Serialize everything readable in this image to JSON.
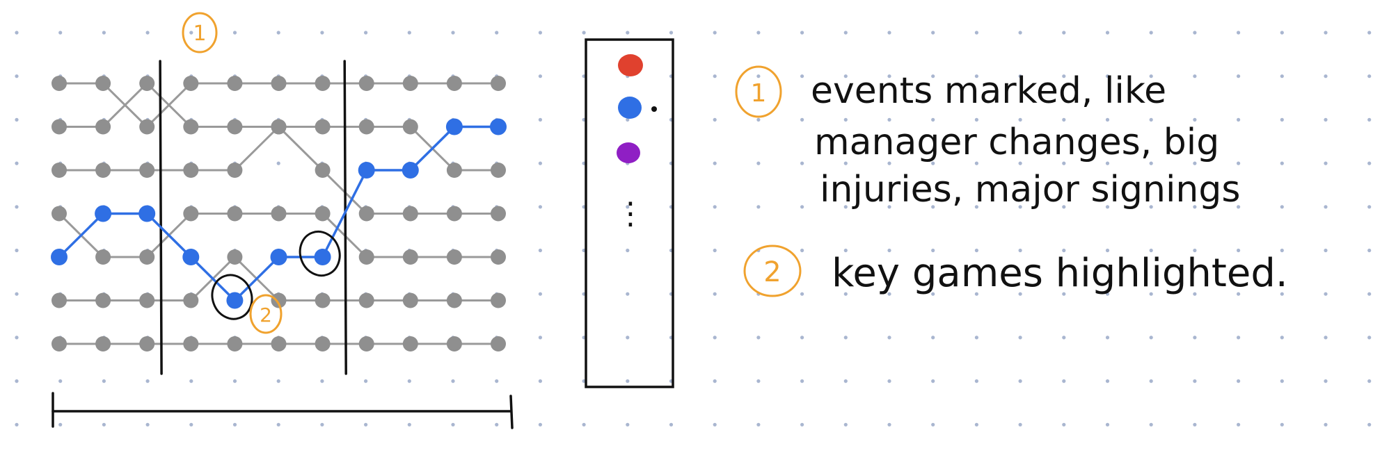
{
  "colors": {
    "background": "#ffffff",
    "grid_dot": "#a9b6d0",
    "ink": "#111111",
    "gray_line": "#9a9a9a",
    "gray_dot": "#8f8f8f",
    "highlight": "#2f6fe4",
    "annotation": "#f0a22e",
    "legend_red": "#e0412e",
    "legend_blue": "#2f6fe4",
    "legend_purple": "#8f1fc4"
  },
  "chart_data": {
    "type": "line",
    "x": [
      1,
      2,
      3,
      4,
      5,
      6,
      7,
      8,
      9,
      10,
      11
    ],
    "y_scale": "rank (1 = top row, 7 = bottom row)",
    "highlighted_series": {
      "color": "blue",
      "values": [
        5,
        4,
        4,
        5,
        6,
        5,
        5,
        3,
        3,
        2,
        2
      ]
    },
    "other_series": [
      {
        "values": [
          1,
          1,
          2,
          1,
          1,
          1,
          1,
          1,
          1,
          1,
          1
        ]
      },
      {
        "values": [
          2,
          2,
          1,
          2,
          2,
          2,
          2,
          2,
          2,
          3,
          3
        ]
      },
      {
        "values": [
          3,
          3,
          3,
          3,
          3,
          2,
          3,
          4,
          4,
          4,
          4
        ]
      },
      {
        "values": [
          4,
          5,
          5,
          4,
          4,
          4,
          4,
          5,
          5,
          5,
          5
        ]
      },
      {
        "values": [
          6,
          6,
          6,
          6,
          5,
          6,
          6,
          6,
          6,
          6,
          6
        ]
      },
      {
        "values": [
          7,
          7,
          7,
          7,
          7,
          7,
          7,
          7,
          7,
          7,
          7
        ]
      }
    ],
    "event_markers_after_x": [
      3.3,
      7.5
    ],
    "event_marker_label": "1",
    "key_game_circles_at_x": [
      5,
      7
    ],
    "key_game_label": "2"
  },
  "legend": {
    "swatches": [
      "red",
      "blue",
      "purple"
    ],
    "more_indicator": "⋮"
  },
  "notes": [
    {
      "number": "1",
      "text_lines": [
        "events marked, like",
        "manager changes, big",
        "injuries, major signings"
      ]
    },
    {
      "number": "2",
      "text_lines": [
        "key games highlighted."
      ]
    }
  ]
}
